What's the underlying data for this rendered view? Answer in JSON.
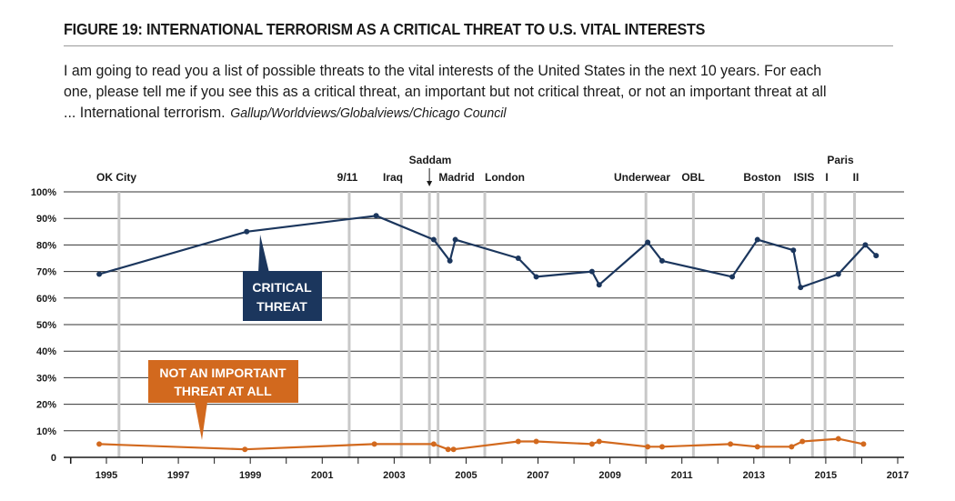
{
  "header": {
    "title": "FIGURE 19: INTERNATIONAL TERRORISM AS A CRITICAL THREAT TO U.S. VITAL INTERESTS",
    "question": "I am going to read you a list of possible threats to the vital interests of the United States in the next 10 years. For each one, please tell me if you see this as a critical threat, an important but not critical threat, or not an important threat at all ... International terrorism.",
    "source": "Gallup/Worldviews/Globalviews/Chicago Council"
  },
  "colors": {
    "critical": "#1b365d",
    "not_important": "#d2691e",
    "event_line": "#c8c8c8",
    "grid": "#333333"
  },
  "chart_data": {
    "type": "line",
    "title": "FIGURE 19: INTERNATIONAL TERRORISM AS A CRITICAL THREAT TO U.S. VITAL INTERESTS",
    "xlabel": "",
    "ylabel": "",
    "xlim": [
      1993.75,
      2017
    ],
    "ylim": [
      0,
      100
    ],
    "grid": true,
    "x_ticks": [
      1995,
      1997,
      1999,
      2001,
      2003,
      2005,
      2007,
      2009,
      2011,
      2013,
      2015,
      2017
    ],
    "y_ticks": [
      0,
      10,
      20,
      30,
      40,
      50,
      60,
      70,
      80,
      90,
      100
    ],
    "y_tick_labels": [
      "0",
      "10%",
      "20%",
      "30%",
      "40%",
      "50%",
      "60%",
      "70%",
      "80%",
      "90%",
      "100%"
    ],
    "series": [
      {
        "name": "CRITICAL THREAT",
        "label_lines": [
          "CRITICAL",
          "THREAT"
        ],
        "x": [
          1994.8,
          1998.9,
          2002.5,
          2004.1,
          2004.55,
          2004.7,
          2006.45,
          2006.95,
          2008.5,
          2008.7,
          2010.05,
          2010.45,
          2012.4,
          2013.1,
          2014.1,
          2014.3,
          2015.35,
          2016.1,
          2016.4
        ],
        "values": [
          69,
          85,
          91,
          82,
          74,
          82,
          75,
          68,
          70,
          65,
          81,
          74,
          68,
          82,
          78,
          64,
          69,
          80,
          76
        ]
      },
      {
        "name": "NOT AN IMPORTANT THREAT AT ALL",
        "label_lines": [
          "NOT AN IMPORTANT",
          "THREAT AT ALL"
        ],
        "x": [
          1994.8,
          1998.85,
          2002.45,
          2004.1,
          2004.5,
          2004.65,
          2006.45,
          2006.95,
          2008.5,
          2008.7,
          2010.05,
          2010.45,
          2012.35,
          2013.1,
          2014.05,
          2014.35,
          2015.35,
          2016.05
        ],
        "values": [
          5,
          3,
          5,
          5,
          3,
          3,
          6,
          6,
          5,
          6,
          4,
          4,
          5,
          4,
          4,
          6,
          7,
          5
        ]
      }
    ],
    "annotations": [
      {
        "label": "OK City",
        "x": 1995.35
      },
      {
        "label": "9/11",
        "x": 2001.75
      },
      {
        "label": "Iraq",
        "x": 2003.2
      },
      {
        "label": "Saddam",
        "x": 2003.98,
        "arrow": true
      },
      {
        "label": "Madrid",
        "x": 2004.22
      },
      {
        "label": "London",
        "x": 2005.52
      },
      {
        "label": "Underwear",
        "x": 2010.0
      },
      {
        "label": "OBL",
        "x": 2011.32
      },
      {
        "label": "Boston",
        "x": 2013.27
      },
      {
        "label": "ISIS",
        "x": 2014.63
      },
      {
        "label": "I",
        "x": 2014.98
      },
      {
        "label": "II",
        "x": 2015.8
      }
    ],
    "extra_annotation": "Paris"
  }
}
